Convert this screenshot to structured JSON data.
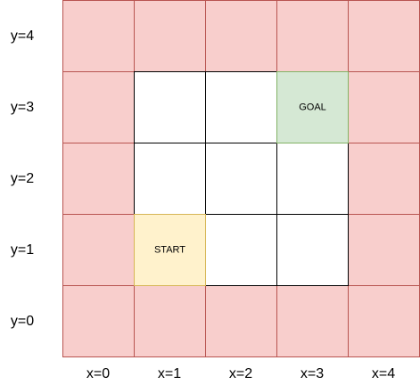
{
  "grid": {
    "columns": 5,
    "rows": 5,
    "x_labels": [
      "x=0",
      "x=1",
      "x=2",
      "x=3",
      "x=4"
    ],
    "y_labels": [
      "y=0",
      "y=1",
      "y=2",
      "y=3",
      "y=4"
    ],
    "cells": [
      {
        "x": 0,
        "y": 0,
        "kind": "wall"
      },
      {
        "x": 1,
        "y": 0,
        "kind": "wall"
      },
      {
        "x": 2,
        "y": 0,
        "kind": "wall"
      },
      {
        "x": 3,
        "y": 0,
        "kind": "wall"
      },
      {
        "x": 4,
        "y": 0,
        "kind": "wall"
      },
      {
        "x": 0,
        "y": 1,
        "kind": "wall"
      },
      {
        "x": 1,
        "y": 1,
        "kind": "start",
        "label": "START"
      },
      {
        "x": 2,
        "y": 1,
        "kind": "open"
      },
      {
        "x": 3,
        "y": 1,
        "kind": "open"
      },
      {
        "x": 4,
        "y": 1,
        "kind": "wall"
      },
      {
        "x": 0,
        "y": 2,
        "kind": "wall"
      },
      {
        "x": 1,
        "y": 2,
        "kind": "open"
      },
      {
        "x": 2,
        "y": 2,
        "kind": "open"
      },
      {
        "x": 3,
        "y": 2,
        "kind": "open"
      },
      {
        "x": 4,
        "y": 2,
        "kind": "wall"
      },
      {
        "x": 0,
        "y": 3,
        "kind": "wall"
      },
      {
        "x": 1,
        "y": 3,
        "kind": "open"
      },
      {
        "x": 2,
        "y": 3,
        "kind": "open"
      },
      {
        "x": 3,
        "y": 3,
        "kind": "goal",
        "label": "GOAL"
      },
      {
        "x": 4,
        "y": 3,
        "kind": "wall"
      },
      {
        "x": 0,
        "y": 4,
        "kind": "wall"
      },
      {
        "x": 1,
        "y": 4,
        "kind": "wall"
      },
      {
        "x": 2,
        "y": 4,
        "kind": "wall"
      },
      {
        "x": 3,
        "y": 4,
        "kind": "wall"
      },
      {
        "x": 4,
        "y": 4,
        "kind": "wall"
      }
    ]
  },
  "colors": {
    "wall_fill": "#f8cecc",
    "wall_stroke": "#b85450",
    "open_fill": "#ffffff",
    "open_stroke": "#000000",
    "start_fill": "#fff2cc",
    "start_stroke": "#d6b656",
    "goal_fill": "#d5e8d4",
    "goal_stroke": "#82b366"
  }
}
